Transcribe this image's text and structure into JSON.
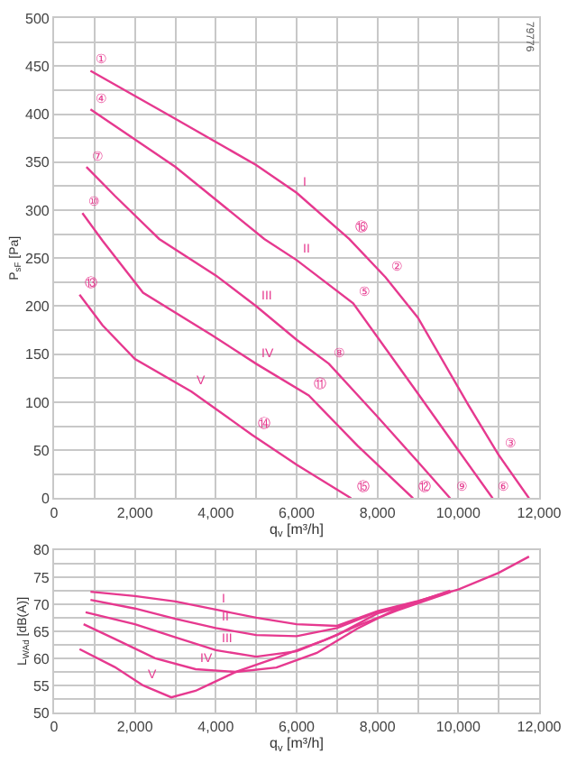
{
  "chart_data": [
    {
      "type": "line",
      "xlabel": "q$_{v}$ [m³/h]",
      "ylabel": "P$_{sF}$ [Pa]",
      "xlim": [
        0,
        12000
      ],
      "xticks": [
        0,
        {
          "value": 1000,
          "label": null
        },
        {
          "value": 2000,
          "label": "2,000"
        },
        {
          "value": 3000,
          "label": null
        },
        {
          "value": 4000,
          "label": "4,000"
        },
        {
          "value": 5000,
          "label": null
        },
        {
          "value": 6000,
          "label": "6,000"
        },
        {
          "value": 7000,
          "label": null
        },
        {
          "value": 8000,
          "label": "8,000"
        },
        {
          "value": 9000,
          "label": null
        },
        {
          "value": 10000,
          "label": "10,000"
        },
        {
          "value": 11000,
          "label": null
        },
        {
          "value": 12000,
          "label": "12,000"
        }
      ],
      "ylim": [
        0,
        500
      ],
      "yticks": [
        0,
        {
          "value": 25,
          "label": null
        },
        50,
        {
          "value": 75,
          "label": null
        },
        100,
        {
          "value": 125,
          "label": null
        },
        150,
        {
          "value": 175,
          "label": null
        },
        200,
        {
          "value": 225,
          "label": null
        },
        250,
        {
          "value": 275,
          "label": null
        },
        300,
        {
          "value": 325,
          "label": null
        },
        350,
        {
          "value": 375,
          "label": null
        },
        400,
        {
          "value": 425,
          "label": null
        },
        450,
        {
          "value": 475,
          "label": null
        },
        500
      ],
      "grid": true,
      "series": [
        {
          "color": "#e6398f",
          "x": [
            900,
            3000,
            5000,
            6000,
            7300,
            8200,
            9000,
            10250,
            11000,
            11750
          ],
          "values": [
            445,
            395,
            347,
            318,
            270,
            230,
            188,
            97,
            45,
            0
          ]
        },
        {
          "color": "#e6398f",
          "x": [
            900,
            3000,
            5200,
            6000,
            7400,
            8900,
            10000,
            10850
          ],
          "values": [
            405,
            345,
            270,
            248,
            203,
            115,
            50,
            0
          ]
        },
        {
          "color": "#e6398f",
          "x": [
            800,
            1500,
            2600,
            4000,
            5000,
            6000,
            6800,
            8000,
            9000,
            9800
          ],
          "values": [
            345,
            315,
            270,
            232,
            200,
            165,
            140,
            85,
            38,
            0
          ]
        },
        {
          "color": "#e6398f",
          "x": [
            700,
            1200,
            2200,
            3900,
            5000,
            6300,
            7500,
            8880
          ],
          "values": [
            297,
            268,
            214,
            170,
            140,
            107,
            55,
            0
          ]
        },
        {
          "color": "#e6398f",
          "x": [
            630,
            1200,
            2000,
            3400,
            4900,
            6000,
            7350
          ],
          "values": [
            212,
            180,
            145,
            111,
            66,
            35,
            0
          ]
        }
      ],
      "annotations": [
        {
          "text": "I",
          "x": 6000,
          "y": 318
        },
        {
          "text": "II",
          "x": 6000,
          "y": 248
        },
        {
          "text": "III",
          "x": 5000,
          "y": 200
        },
        {
          "text": "IV",
          "x": 5000,
          "y": 140
        },
        {
          "text": "V",
          "x": 3400,
          "y": 111
        },
        {
          "text": "①",
          "x": 900,
          "y": 445
        },
        {
          "text": "④",
          "x": 900,
          "y": 405
        },
        {
          "text": "⑦",
          "x": 800,
          "y": 345
        },
        {
          "text": "⑩",
          "x": 700,
          "y": 297
        },
        {
          "text": "⑬",
          "x": 630,
          "y": 212
        },
        {
          "text": "②",
          "x": 8200,
          "y": 230
        },
        {
          "text": "⑤",
          "x": 7400,
          "y": 203
        },
        {
          "text": "⑧",
          "x": 6800,
          "y": 140
        },
        {
          "text": "⑪",
          "x": 6300,
          "y": 107
        },
        {
          "text": "⑭",
          "x": 4900,
          "y": 66
        },
        {
          "text": "⑯",
          "x": 7300,
          "y": 270
        },
        {
          "text": "⑮",
          "x": 7350,
          "y": 0
        },
        {
          "text": "⑫",
          "x": 8880,
          "y": 0
        },
        {
          "text": "⑨",
          "x": 9800,
          "y": 0
        },
        {
          "text": "⑥",
          "x": 10850,
          "y": 0
        },
        {
          "text": "③",
          "x": 11000,
          "y": 45
        },
        "79776"
      ]
    },
    {
      "type": "line",
      "xlabel": "q$_{v}$ [m³/h]",
      "ylabel": "L$_{WAd}$ [dB(A)]",
      "xlim": [
        0,
        12000
      ],
      "xticks": [
        0,
        {
          "value": 1000,
          "label": null
        },
        {
          "value": 2000,
          "label": "2,000"
        },
        {
          "value": 3000,
          "label": null
        },
        {
          "value": 4000,
          "label": "4,000"
        },
        {
          "value": 5000,
          "label": null
        },
        {
          "value": 6000,
          "label": "6,000"
        },
        {
          "value": 7000,
          "label": null
        },
        {
          "value": 8000,
          "label": "8,000"
        },
        {
          "value": 9000,
          "label": null
        },
        {
          "value": 10000,
          "label": "10,000"
        },
        {
          "value": 11000,
          "label": null
        },
        {
          "value": 12000,
          "label": "12,000"
        }
      ],
      "ylim": [
        50,
        80
      ],
      "yticks": [
        50,
        {
          "value": 52.5,
          "label": null
        },
        55,
        {
          "value": 57.5,
          "label": null
        },
        60,
        {
          "value": 62.5,
          "label": null
        },
        65,
        {
          "value": 67.5,
          "label": null
        },
        70,
        {
          "value": 72.5,
          "label": null
        },
        75,
        {
          "value": 77.5,
          "label": null
        },
        80
      ],
      "grid": true,
      "series": [
        {
          "color": "#e6398f",
          "x": [
            900,
            2000,
            3000,
            4000,
            5000,
            6000,
            7000,
            8000,
            9000,
            10000,
            11000,
            11750
          ],
          "values": [
            72.3,
            71.5,
            70.5,
            69,
            67.5,
            66.3,
            66,
            68.7,
            70.6,
            72.7,
            75.8,
            78.8
          ]
        },
        {
          "color": "#e6398f",
          "x": [
            900,
            2000,
            3000,
            4000,
            5000,
            6000,
            7000,
            8000,
            9000,
            9800
          ],
          "values": [
            70.8,
            69.2,
            67.3,
            65.6,
            64.3,
            64.1,
            65.6,
            68.6,
            70.5,
            72.5
          ]
        },
        {
          "color": "#e6398f",
          "x": [
            780,
            2000,
            3000,
            4000,
            5000,
            6000,
            7000,
            8000,
            9000,
            9800
          ],
          "values": [
            68.5,
            66.3,
            63.9,
            61.5,
            60.3,
            61.3,
            64.3,
            68.3,
            70.4,
            72.4
          ]
        },
        {
          "color": "#e6398f",
          "x": [
            730,
            1500,
            2500,
            3500,
            4500,
            5500,
            6500,
            7500,
            8500,
            9800
          ],
          "values": [
            66.3,
            63.6,
            60,
            58,
            57.5,
            58.3,
            61,
            65.5,
            69.2,
            72.3
          ]
        },
        {
          "color": "#e6398f",
          "x": [
            630,
            1500,
            2200,
            2900,
            3500,
            4500,
            5500,
            6700,
            7500,
            8500,
            9800
          ],
          "values": [
            61.7,
            58.4,
            55,
            52.8,
            54,
            57.5,
            60.1,
            63.4,
            66,
            68.9,
            72.2
          ]
        }
      ],
      "annotations": [
        {
          "text": "I",
          "x": 4000,
          "y": 69
        },
        {
          "text": "II",
          "x": 4000,
          "y": 65.6
        },
        {
          "text": "III",
          "x": 4000,
          "y": 61.5
        },
        {
          "text": "IV",
          "x": 3500,
          "y": 58
        },
        {
          "text": "V",
          "x": 2200,
          "y": 55
        }
      ]
    }
  ]
}
